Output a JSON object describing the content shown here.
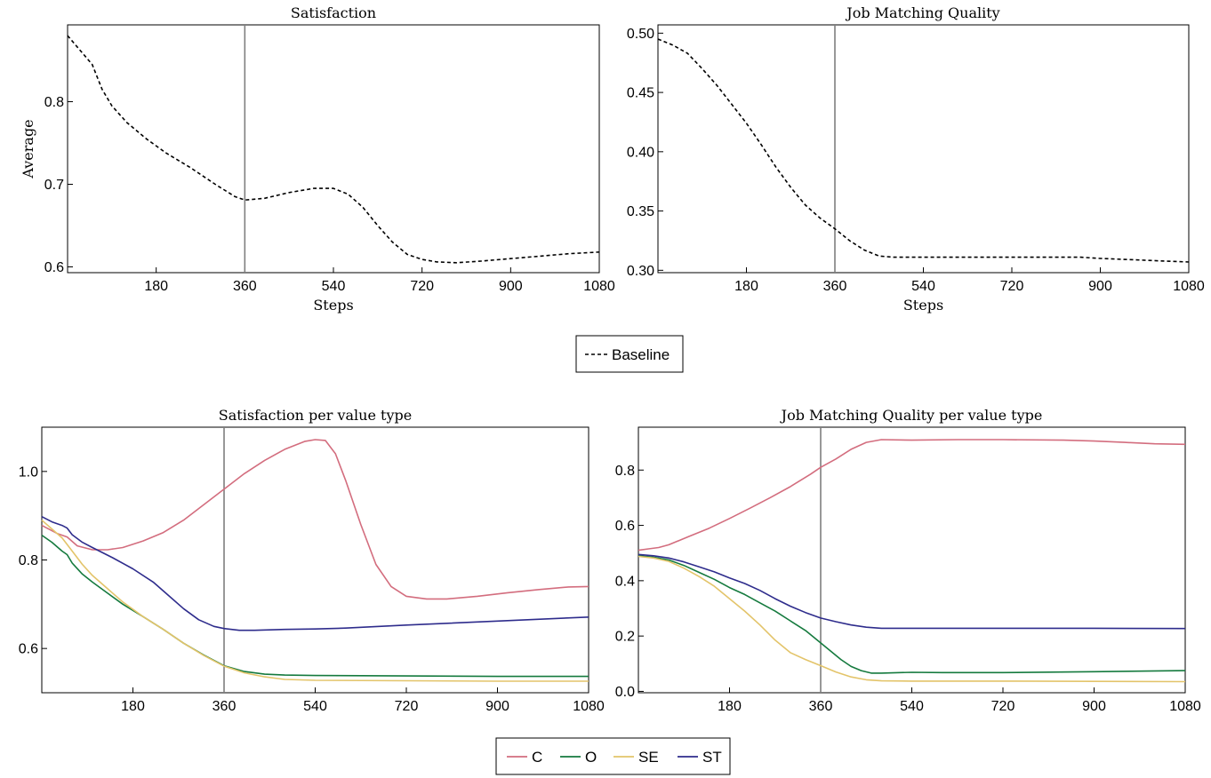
{
  "chart_data": [
    {
      "type": "line",
      "title": "Satisfaction",
      "xlabel": "Steps",
      "ylabel": "Average",
      "xlim": [
        0,
        1080
      ],
      "ylim": [
        0.593,
        0.893
      ],
      "xticks": [
        180,
        360,
        540,
        720,
        900,
        1080
      ],
      "xtick_labels": [
        "180",
        "360",
        "540",
        "720",
        "900",
        "1080"
      ],
      "yticks": [
        0.6,
        0.7,
        0.8
      ],
      "ytick_labels": [
        "0.6",
        "0.7",
        "0.8"
      ],
      "vline": 360,
      "series": [
        {
          "name": "Baseline",
          "style": "dashed",
          "color": "#000000",
          "x": [
            0,
            50,
            70,
            90,
            120,
            160,
            200,
            250,
            300,
            340,
            360,
            400,
            450,
            500,
            540,
            570,
            600,
            630,
            660,
            690,
            720,
            750,
            790,
            840,
            900,
            960,
            1020,
            1080
          ],
          "y": [
            0.88,
            0.845,
            0.815,
            0.795,
            0.775,
            0.755,
            0.738,
            0.72,
            0.7,
            0.685,
            0.681,
            0.683,
            0.69,
            0.695,
            0.695,
            0.688,
            0.672,
            0.65,
            0.63,
            0.615,
            0.609,
            0.606,
            0.605,
            0.607,
            0.61,
            0.613,
            0.616,
            0.618
          ]
        }
      ]
    },
    {
      "type": "line",
      "title": "Job Matching Quality",
      "xlabel": "Steps",
      "ylabel": "",
      "xlim": [
        0,
        1080
      ],
      "ylim": [
        0.298,
        0.507
      ],
      "xticks": [
        180,
        360,
        540,
        720,
        900,
        1080
      ],
      "xtick_labels": [
        "180",
        "360",
        "540",
        "720",
        "900",
        "1080"
      ],
      "yticks": [
        0.3,
        0.35,
        0.4,
        0.45,
        0.5
      ],
      "ytick_labels": [
        "0.30",
        "0.35",
        "0.40",
        "0.45",
        "0.50"
      ],
      "vline": 360,
      "series": [
        {
          "name": "Baseline",
          "style": "dashed",
          "color": "#000000",
          "x": [
            0,
            30,
            60,
            90,
            120,
            150,
            180,
            210,
            240,
            270,
            300,
            330,
            360,
            390,
            420,
            450,
            480,
            540,
            720,
            860,
            900,
            960,
            1020,
            1080
          ],
          "y": [
            0.495,
            0.49,
            0.483,
            0.47,
            0.456,
            0.44,
            0.424,
            0.406,
            0.387,
            0.37,
            0.355,
            0.344,
            0.335,
            0.325,
            0.317,
            0.312,
            0.311,
            0.311,
            0.311,
            0.311,
            0.31,
            0.309,
            0.308,
            0.307
          ]
        }
      ]
    },
    {
      "type": "line",
      "title": "Satisfaction per value type",
      "xlabel": "",
      "ylabel": "",
      "xlim": [
        0,
        1080
      ],
      "ylim": [
        0.5,
        1.1
      ],
      "xticks": [
        180,
        360,
        540,
        720,
        900,
        1080
      ],
      "xtick_labels": [
        "180",
        "360",
        "540",
        "720",
        "900",
        "1080"
      ],
      "yticks": [
        0.6,
        0.8,
        1.0
      ],
      "ytick_labels": [
        "0.6",
        "0.8",
        "1.0"
      ],
      "vline": 360,
      "series": [
        {
          "name": "C",
          "color": "#d36d7e",
          "x": [
            0,
            30,
            50,
            70,
            100,
            130,
            160,
            200,
            240,
            280,
            320,
            360,
            400,
            440,
            480,
            520,
            540,
            560,
            580,
            600,
            630,
            660,
            690,
            720,
            760,
            800,
            860,
            920,
            980,
            1040,
            1080
          ],
          "y": [
            0.878,
            0.86,
            0.852,
            0.832,
            0.823,
            0.823,
            0.828,
            0.843,
            0.862,
            0.89,
            0.925,
            0.96,
            0.995,
            1.025,
            1.05,
            1.068,
            1.072,
            1.07,
            1.04,
            0.98,
            0.88,
            0.79,
            0.74,
            0.718,
            0.712,
            0.712,
            0.718,
            0.726,
            0.733,
            0.739,
            0.74
          ]
        },
        {
          "name": "O",
          "color": "#157a3e",
          "x": [
            0,
            20,
            40,
            50,
            60,
            80,
            100,
            130,
            160,
            200,
            240,
            280,
            320,
            360,
            400,
            440,
            480,
            540,
            720,
            900,
            1080
          ],
          "y": [
            0.856,
            0.84,
            0.82,
            0.812,
            0.793,
            0.768,
            0.75,
            0.725,
            0.7,
            0.672,
            0.643,
            0.612,
            0.585,
            0.561,
            0.548,
            0.542,
            0.54,
            0.539,
            0.538,
            0.537,
            0.537
          ]
        },
        {
          "name": "SE",
          "color": "#e3c46a",
          "x": [
            0,
            20,
            40,
            60,
            80,
            100,
            130,
            160,
            200,
            240,
            280,
            320,
            360,
            400,
            440,
            480,
            540,
            720,
            900,
            1080
          ],
          "y": [
            0.89,
            0.87,
            0.85,
            0.82,
            0.79,
            0.765,
            0.735,
            0.705,
            0.672,
            0.643,
            0.612,
            0.584,
            0.56,
            0.545,
            0.536,
            0.53,
            0.528,
            0.527,
            0.526,
            0.526
          ]
        },
        {
          "name": "ST",
          "color": "#2e2c8c",
          "x": [
            0,
            20,
            40,
            50,
            60,
            80,
            100,
            140,
            180,
            220,
            250,
            280,
            310,
            340,
            360,
            390,
            420,
            480,
            540,
            600,
            720,
            900,
            1080
          ],
          "y": [
            0.898,
            0.886,
            0.878,
            0.872,
            0.857,
            0.84,
            0.828,
            0.805,
            0.78,
            0.75,
            0.72,
            0.69,
            0.665,
            0.65,
            0.645,
            0.641,
            0.641,
            0.643,
            0.644,
            0.646,
            0.653,
            0.662,
            0.671
          ]
        }
      ]
    },
    {
      "type": "line",
      "title": "Job Matching Quality per value type",
      "xlabel": "",
      "ylabel": "",
      "xlim": [
        0,
        1080
      ],
      "ylim": [
        -0.005,
        0.955
      ],
      "xticks": [
        180,
        360,
        540,
        720,
        900,
        1080
      ],
      "xtick_labels": [
        "180",
        "360",
        "540",
        "720",
        "900",
        "1080"
      ],
      "yticks": [
        0.0,
        0.2,
        0.4,
        0.6,
        0.8
      ],
      "ytick_labels": [
        "0.0",
        "0.2",
        "0.4",
        "0.6",
        "0.8"
      ],
      "vline": 360,
      "series": [
        {
          "name": "C",
          "color": "#d36d7e",
          "x": [
            0,
            20,
            40,
            60,
            100,
            140,
            180,
            220,
            260,
            300,
            340,
            360,
            390,
            420,
            450,
            480,
            540,
            630,
            720,
            840,
            900,
            960,
            1020,
            1080
          ],
          "y": [
            0.51,
            0.515,
            0.52,
            0.53,
            0.56,
            0.59,
            0.625,
            0.662,
            0.7,
            0.74,
            0.785,
            0.81,
            0.84,
            0.875,
            0.9,
            0.91,
            0.908,
            0.91,
            0.91,
            0.908,
            0.905,
            0.9,
            0.895,
            0.893
          ]
        },
        {
          "name": "O",
          "color": "#157a3e",
          "x": [
            0,
            30,
            60,
            90,
            120,
            150,
            180,
            210,
            240,
            270,
            300,
            330,
            360,
            380,
            400,
            420,
            440,
            460,
            480,
            540,
            600,
            720,
            900,
            1080
          ],
          "y": [
            0.49,
            0.485,
            0.475,
            0.455,
            0.43,
            0.405,
            0.375,
            0.35,
            0.32,
            0.29,
            0.255,
            0.22,
            0.175,
            0.145,
            0.115,
            0.09,
            0.075,
            0.066,
            0.066,
            0.069,
            0.068,
            0.068,
            0.071,
            0.075
          ]
        },
        {
          "name": "SE",
          "color": "#e3c46a",
          "x": [
            0,
            30,
            60,
            90,
            120,
            150,
            180,
            210,
            240,
            270,
            300,
            330,
            360,
            390,
            420,
            450,
            480,
            540,
            720,
            900,
            1080
          ],
          "y": [
            0.488,
            0.482,
            0.47,
            0.445,
            0.415,
            0.38,
            0.335,
            0.29,
            0.24,
            0.185,
            0.14,
            0.115,
            0.093,
            0.07,
            0.052,
            0.042,
            0.038,
            0.037,
            0.037,
            0.036,
            0.035
          ]
        },
        {
          "name": "ST",
          "color": "#2e2c8c",
          "x": [
            0,
            30,
            60,
            90,
            120,
            150,
            180,
            210,
            240,
            270,
            300,
            330,
            360,
            390,
            420,
            450,
            480,
            540,
            720,
            900,
            1080
          ],
          "y": [
            0.495,
            0.49,
            0.482,
            0.468,
            0.45,
            0.432,
            0.41,
            0.39,
            0.365,
            0.335,
            0.308,
            0.285,
            0.265,
            0.252,
            0.24,
            0.232,
            0.228,
            0.228,
            0.228,
            0.228,
            0.227
          ]
        }
      ]
    }
  ],
  "legends": {
    "top": {
      "entries": [
        {
          "label": "Baseline",
          "style": "dashed",
          "color": "#000000"
        }
      ]
    },
    "bottom": {
      "entries": [
        {
          "label": "C",
          "color": "#d36d7e"
        },
        {
          "label": "O",
          "color": "#157a3e"
        },
        {
          "label": "SE",
          "color": "#e3c46a"
        },
        {
          "label": "ST",
          "color": "#2e2c8c"
        }
      ]
    }
  }
}
